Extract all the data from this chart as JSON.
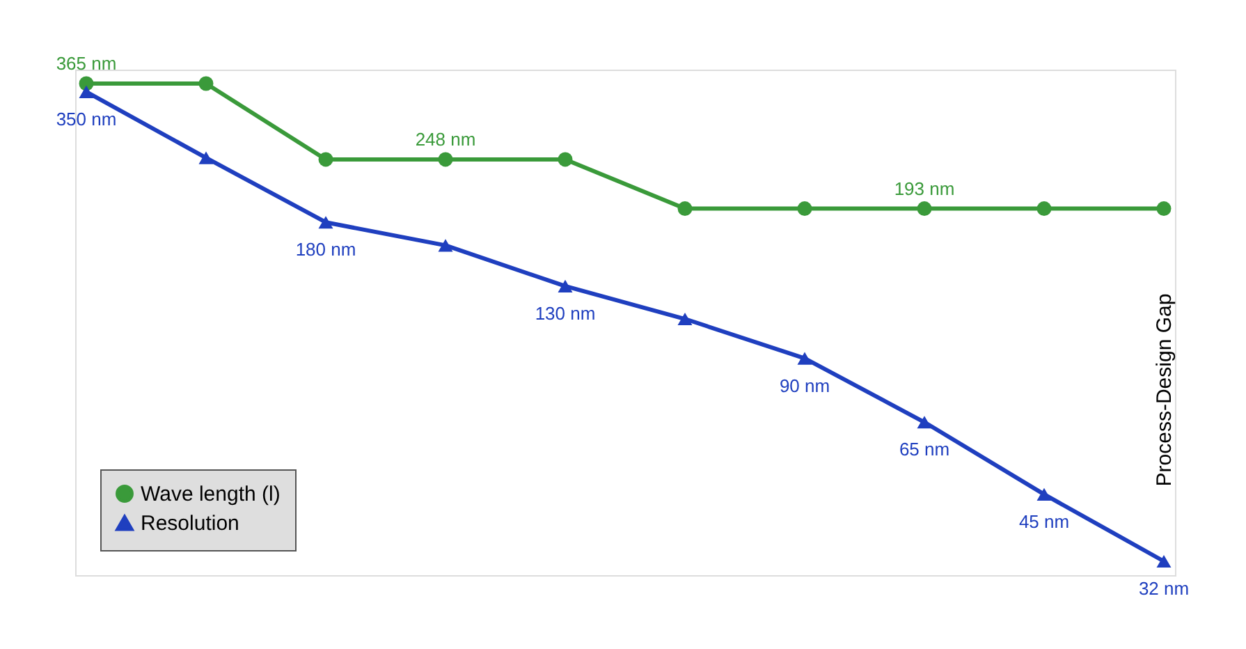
{
  "chart_data": {
    "type": "line",
    "log": true,
    "tick_labels": false,
    "legend": "bottom left",
    "categories": [
      null,
      null,
      null,
      null,
      null,
      null,
      null,
      null,
      null,
      null
    ],
    "series": [
      {
        "name": "Wave length (l)",
        "color": "#3a9a3a",
        "marker": "circle",
        "values": [
          365,
          365,
          248,
          248,
          248,
          193,
          193,
          193,
          193,
          193
        ],
        "value_labels": [
          "365 nm",
          null,
          null,
          "248 nm",
          null,
          null,
          null,
          "193 nm",
          null,
          null
        ]
      },
      {
        "name": "Resolution",
        "color": "#1f3fbf",
        "marker": "triangle",
        "values": [
          350,
          250,
          180,
          160,
          130,
          110,
          90,
          65,
          45,
          32
        ],
        "value_labels": [
          "350 nm",
          null,
          "180 nm",
          null,
          "130 nm",
          null,
          "90 nm",
          "65 nm",
          "45 nm",
          "32 nm"
        ]
      }
    ],
    "annotations": [
      "Process-Design Gap"
    ]
  }
}
